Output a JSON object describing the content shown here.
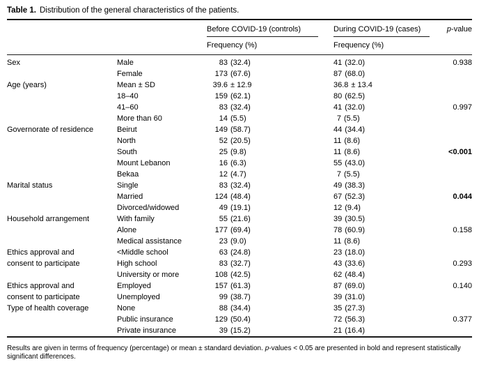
{
  "title": {
    "label": "Table 1.",
    "text": "Distribution of the general characteristics of the patients."
  },
  "header": {
    "group_before": "Before COVID-19 (controls)",
    "group_during": "During COVID-19 (cases)",
    "p_italic": "p",
    "p_rest": "-value",
    "sub_before": "Frequency (%)",
    "sub_during": "Frequency (%)"
  },
  "rows": [
    {
      "cat": "Sex",
      "sub": "Male",
      "b_n": "83",
      "b_r": "(32.4)",
      "d_n": "41",
      "d_r": "(32.0)",
      "p": "0.938",
      "p_bold": false
    },
    {
      "cat": "",
      "sub": "Female",
      "b_n": "173",
      "b_r": "(67.6)",
      "d_n": "87",
      "d_r": "(68.0)",
      "p": "",
      "p_bold": false
    },
    {
      "cat": "Age (years)",
      "sub": "Mean ± SD",
      "b_n": "39.6",
      "b_r": "± 12.9",
      "d_n": "36.8",
      "d_r": "± 13.4",
      "p": "",
      "p_bold": false
    },
    {
      "cat": "",
      "sub": "18–40",
      "b_n": "159",
      "b_r": "(62.1)",
      "d_n": "80",
      "d_r": "(62.5)",
      "p": "",
      "p_bold": false
    },
    {
      "cat": "",
      "sub": "41–60",
      "b_n": "83",
      "b_r": "(32.4)",
      "d_n": "41",
      "d_r": "(32.0)",
      "p": "0.997",
      "p_bold": false
    },
    {
      "cat": "",
      "sub": "More than 60",
      "b_n": "14",
      "b_r": "(5.5)",
      "d_n": "7",
      "d_r": "(5.5)",
      "p": "",
      "p_bold": false
    },
    {
      "cat": "Governorate of residence",
      "sub": "Beirut",
      "b_n": "149",
      "b_r": "(58.7)",
      "d_n": "44",
      "d_r": "(34.4)",
      "p": "",
      "p_bold": false
    },
    {
      "cat": "",
      "sub": "North",
      "b_n": "52",
      "b_r": "(20.5)",
      "d_n": "11",
      "d_r": "(8.6)",
      "p": "",
      "p_bold": false
    },
    {
      "cat": "",
      "sub": "South",
      "b_n": "25",
      "b_r": "(9.8)",
      "d_n": "11",
      "d_r": "(8.6)",
      "p": "<0.001",
      "p_bold": true
    },
    {
      "cat": "",
      "sub": "Mount Lebanon",
      "b_n": "16",
      "b_r": "(6.3)",
      "d_n": "55",
      "d_r": "(43.0)",
      "p": "",
      "p_bold": false
    },
    {
      "cat": "",
      "sub": "Bekaa",
      "b_n": "12",
      "b_r": "(4.7)",
      "d_n": "7",
      "d_r": "(5.5)",
      "p": "",
      "p_bold": false
    },
    {
      "cat": "Marital status",
      "sub": "Single",
      "b_n": "83",
      "b_r": "(32.4)",
      "d_n": "49",
      "d_r": "(38.3)",
      "p": "",
      "p_bold": false
    },
    {
      "cat": "",
      "sub": "Married",
      "b_n": "124",
      "b_r": "(48.4)",
      "d_n": "67",
      "d_r": "(52.3)",
      "p": "0.044",
      "p_bold": true
    },
    {
      "cat": "",
      "sub": "Divorced/widowed",
      "b_n": "49",
      "b_r": "(19.1)",
      "d_n": "12",
      "d_r": "(9.4)",
      "p": "",
      "p_bold": false
    },
    {
      "cat": "Household arrangement",
      "sub": "With family",
      "b_n": "55",
      "b_r": "(21.6)",
      "d_n": "39",
      "d_r": "(30.5)",
      "p": "",
      "p_bold": false
    },
    {
      "cat": "",
      "sub": "Alone",
      "b_n": "177",
      "b_r": "(69.4)",
      "d_n": "78",
      "d_r": "(60.9)",
      "p": "0.158",
      "p_bold": false
    },
    {
      "cat": "",
      "sub": "Medical assistance",
      "b_n": "23",
      "b_r": "(9.0)",
      "d_n": "11",
      "d_r": "(8.6)",
      "p": "",
      "p_bold": false
    },
    {
      "cat": "Ethics approval and",
      "sub": "<Middle school",
      "b_n": "63",
      "b_r": "(24.8)",
      "d_n": "23",
      "d_r": "(18.0)",
      "p": "",
      "p_bold": false
    },
    {
      "cat": "consent to participate",
      "sub": "High school",
      "b_n": "83",
      "b_r": "(32.7)",
      "d_n": "43",
      "d_r": "(33.6)",
      "p": "0.293",
      "p_bold": false
    },
    {
      "cat": "",
      "sub": "University or more",
      "b_n": "108",
      "b_r": "(42.5)",
      "d_n": "62",
      "d_r": "(48.4)",
      "p": "",
      "p_bold": false
    },
    {
      "cat": "Ethics approval and",
      "sub": "Employed",
      "b_n": "157",
      "b_r": "(61.3)",
      "d_n": "87",
      "d_r": "(69.0)",
      "p": "0.140",
      "p_bold": false
    },
    {
      "cat": "consent to participate",
      "sub": "Unemployed",
      "b_n": "99",
      "b_r": "(38.7)",
      "d_n": "39",
      "d_r": "(31.0)",
      "p": "",
      "p_bold": false
    },
    {
      "cat": "Type of health coverage",
      "sub": "None",
      "b_n": "88",
      "b_r": "(34.4)",
      "d_n": "35",
      "d_r": "(27.3)",
      "p": "",
      "p_bold": false
    },
    {
      "cat": "",
      "sub": "Public insurance",
      "b_n": "129",
      "b_r": "(50.4)",
      "d_n": "72",
      "d_r": "(56.3)",
      "p": "0.377",
      "p_bold": false
    },
    {
      "cat": "",
      "sub": "Private insurance",
      "b_n": "39",
      "b_r": "(15.2)",
      "d_n": "21",
      "d_r": "(16.4)",
      "p": "",
      "p_bold": false
    }
  ],
  "footnote": {
    "part1": "Results are given in terms of frequency (percentage) or mean ± standard deviation. ",
    "p_italic": "p",
    "part2": "-values < 0.05 are presented in bold and represent statistically significant differences."
  },
  "colors": {
    "background": "#ffffff",
    "text": "#000000",
    "rule": "#1a1a1a"
  }
}
